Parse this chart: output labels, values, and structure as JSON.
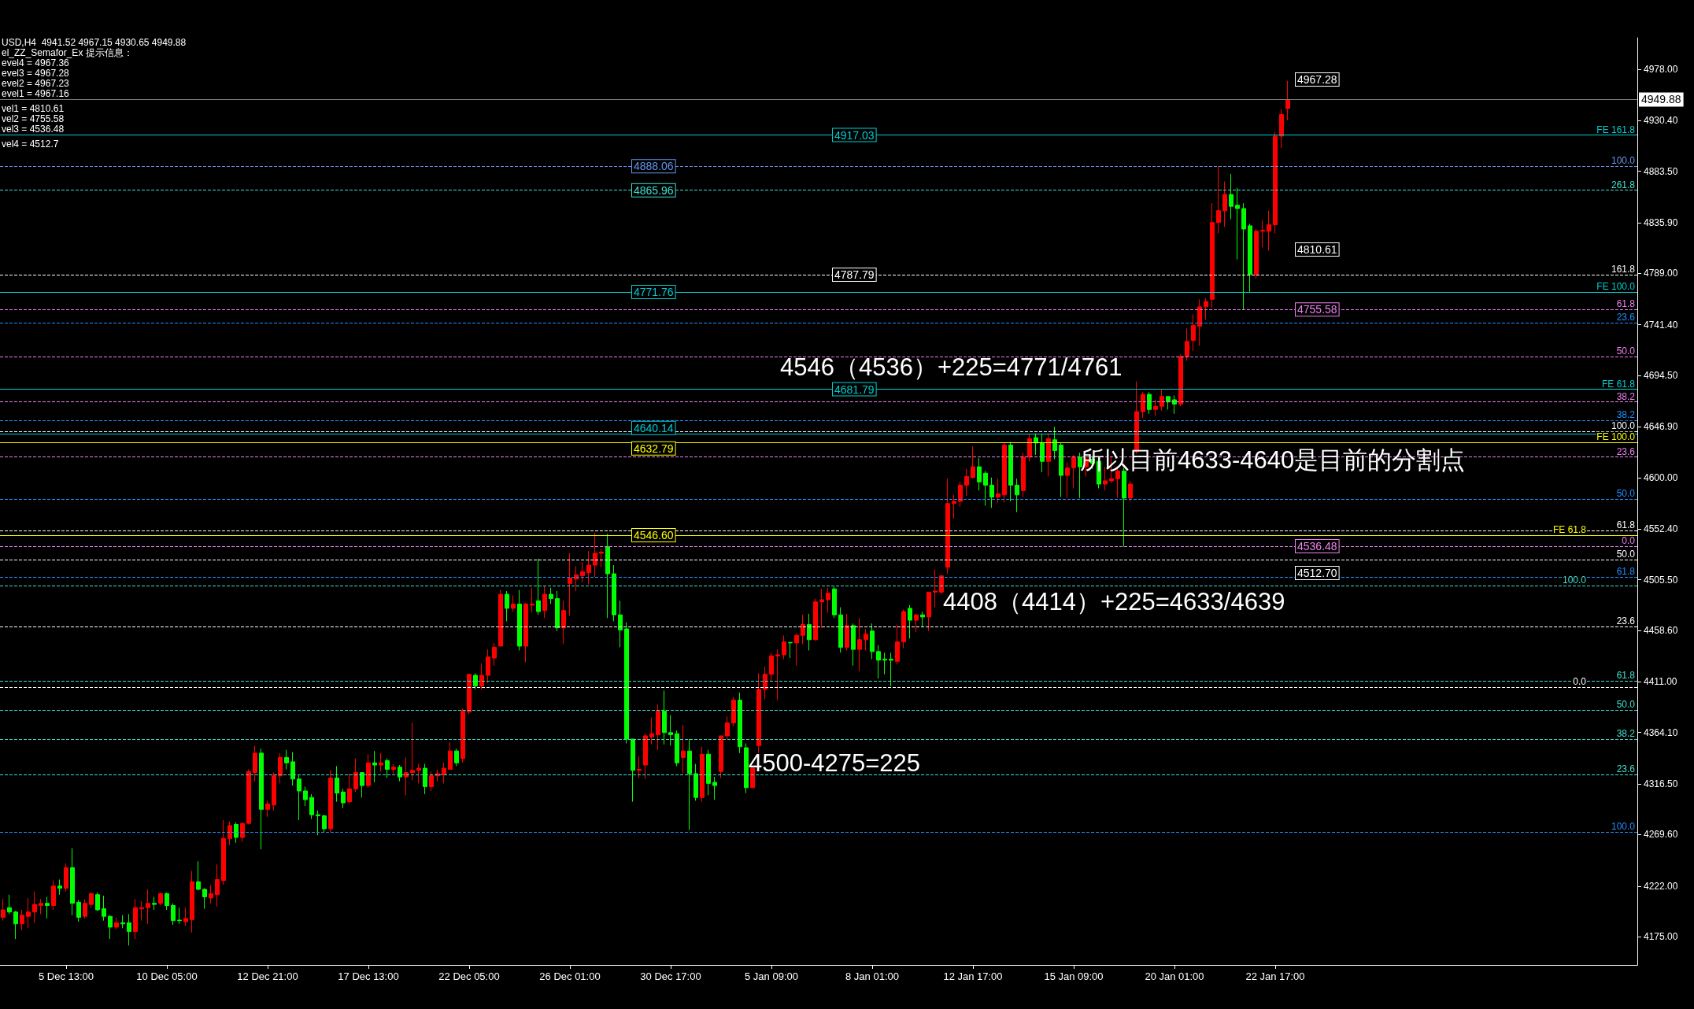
{
  "chart_data": {
    "type": "candlestick",
    "title": "USD,H4  4941.52 4967.15 4930.65 4949.88",
    "subtitle": "el_ZZ_Semafor_Ex 提示信息：",
    "categories": [
      null,
      null,
      null,
      null,
      null,
      null,
      null,
      null,
      null,
      null,
      "5 Dec 13:00",
      null,
      null,
      null,
      null,
      null,
      null,
      null,
      null,
      null,
      null,
      null,
      null,
      null,
      null,
      null,
      "10 Dec 05:00",
      null,
      null,
      null,
      null,
      null,
      null,
      null,
      null,
      null,
      null,
      null,
      null,
      null,
      null,
      null,
      "12 Dec 21:00",
      null,
      null,
      null,
      null,
      null,
      null,
      null,
      null,
      null,
      null,
      null,
      null,
      null,
      null,
      null,
      "17 Dec 13:00",
      null,
      null,
      null,
      null,
      null,
      null,
      null,
      null,
      null,
      null,
      null,
      null,
      null,
      null,
      null,
      "22 Dec 05:00",
      null,
      null,
      null,
      null,
      null,
      null,
      null,
      null,
      null,
      null,
      null,
      null,
      null,
      null,
      null,
      "26 Dec 01:00",
      null,
      null,
      null,
      null,
      null,
      null,
      null,
      null,
      null,
      null,
      null,
      null,
      null,
      null,
      null,
      "30 Dec 17:00",
      null,
      null,
      null,
      null,
      null,
      null,
      null,
      null,
      null,
      null,
      null,
      null,
      null,
      null,
      null,
      "5 Jan 09:00",
      null,
      null,
      null,
      null,
      null,
      null,
      null,
      null,
      null,
      null,
      null,
      null,
      null,
      null,
      null,
      "8 Jan 01:00",
      null,
      null,
      null,
      null,
      null,
      null,
      null,
      null,
      null,
      null,
      null,
      null,
      null,
      null,
      null,
      "12 Jan 17:00",
      null,
      null,
      null,
      null,
      null,
      null,
      null,
      null,
      null,
      null,
      null,
      null,
      null,
      null,
      null,
      "15 Jan 09:00",
      null,
      null,
      null,
      null,
      null,
      null,
      null,
      null,
      null,
      null,
      null,
      null,
      null,
      null,
      null,
      "20 Jan 01:00",
      null,
      null,
      null,
      null,
      null,
      null,
      null,
      null,
      null,
      null,
      null,
      null,
      null,
      null,
      null,
      "22 Jan 17:00",
      null,
      null,
      null,
      null,
      null,
      null,
      null,
      null,
      null,
      null,
      null,
      null,
      null,
      null,
      null,
      null,
      null,
      null,
      null,
      null,
      null,
      null,
      null,
      null,
      null,
      null,
      null,
      null,
      null,
      null,
      null,
      null,
      null,
      null,
      null,
      null,
      null,
      null,
      null,
      null,
      null,
      null,
      null,
      null,
      null,
      null,
      null,
      null,
      null,
      null,
      null,
      null,
      null,
      null,
      null,
      null,
      null
    ],
    "ohlc": [
      [
        4193,
        4210,
        4190,
        4200
      ],
      [
        4202,
        4214,
        4196,
        4198
      ],
      [
        4198,
        4199,
        4173,
        4187
      ],
      [
        4187,
        4200,
        4181,
        4195
      ],
      [
        4194,
        4211,
        4183,
        4198
      ],
      [
        4198,
        4217,
        4188,
        4205
      ],
      [
        4204,
        4210,
        4196,
        4206
      ],
      [
        4206,
        4212,
        4192,
        4204
      ],
      [
        4204,
        4227,
        4200,
        4222
      ],
      [
        4222,
        4228,
        4214,
        4220
      ],
      [
        4220,
        4243,
        4217,
        4239
      ],
      [
        4239,
        4257,
        4195,
        4206
      ],
      [
        4207,
        4209,
        4189,
        4193
      ],
      [
        4194,
        4210,
        4192,
        4206
      ],
      [
        4205,
        4216,
        4202,
        4215
      ],
      [
        4214,
        4216,
        4199,
        4200
      ],
      [
        4201,
        4213,
        4190,
        4194
      ],
      [
        4194,
        4195,
        4173,
        4184
      ],
      [
        4184,
        4193,
        4182,
        4188
      ],
      [
        4188,
        4195,
        4183,
        4187
      ],
      [
        4188,
        4196,
        4167,
        4180
      ],
      [
        4180,
        4210,
        4173,
        4202
      ],
      [
        4201,
        4208,
        4190,
        4202
      ],
      [
        4202,
        4219,
        4187,
        4206
      ],
      [
        4206,
        4212,
        4200,
        4205
      ],
      [
        4206,
        4216,
        4204,
        4215
      ],
      [
        4215,
        4216,
        4200,
        4204
      ],
      [
        4204,
        4206,
        4186,
        4190
      ],
      [
        4190.5,
        4202,
        4187,
        4190
      ],
      [
        4189,
        4202,
        4185,
        4192
      ],
      [
        4191,
        4236,
        4179,
        4226
      ],
      [
        4226,
        4245,
        4218,
        4219
      ],
      [
        4219,
        4220,
        4201,
        4212
      ],
      [
        4211,
        4223,
        4206,
        4215
      ],
      [
        4214,
        4242,
        4203,
        4228
      ],
      [
        4227,
        4283,
        4223,
        4266
      ],
      [
        4266,
        4282,
        4260,
        4278
      ],
      [
        4279,
        4281,
        4262,
        4267
      ],
      [
        4267,
        4281,
        4263,
        4280
      ],
      [
        4280,
        4330,
        4279,
        4328
      ],
      [
        4327,
        4352,
        4319,
        4345
      ],
      [
        4345,
        4349,
        4256,
        4293
      ],
      [
        4293,
        4301,
        4286,
        4298
      ],
      [
        4297,
        4327,
        4292,
        4324
      ],
      [
        4324,
        4345,
        4317,
        4341
      ],
      [
        4341,
        4348,
        4330,
        4336
      ],
      [
        4337,
        4346,
        4315,
        4321
      ],
      [
        4321,
        4325,
        4283,
        4310
      ],
      [
        4310,
        4314,
        4296,
        4302
      ],
      [
        4304,
        4307,
        4284,
        4288
      ],
      [
        4288,
        4292,
        4269,
        4287
      ],
      [
        4287,
        4288,
        4272,
        4275
      ],
      [
        4275,
        4329,
        4272,
        4322
      ],
      [
        4322,
        4333,
        4300,
        4308
      ],
      [
        4309,
        4312,
        4294,
        4299
      ],
      [
        4300,
        4326,
        4298,
        4312
      ],
      [
        4312,
        4340,
        4309,
        4327
      ],
      [
        4327,
        4327,
        4304,
        4315
      ],
      [
        4315,
        4344,
        4313,
        4336
      ],
      [
        4336,
        4347,
        4318,
        4334
      ],
      [
        4334,
        4345,
        4328,
        4336
      ],
      [
        4338,
        4340,
        4322,
        4330
      ],
      [
        4330,
        4335,
        4326,
        4332
      ],
      [
        4332,
        4334,
        4319,
        4323
      ],
      [
        4323,
        4341,
        4306,
        4327
      ],
      [
        4327,
        4373,
        4320,
        4329
      ],
      [
        4329,
        4335,
        4317,
        4331
      ],
      [
        4331,
        4335,
        4307,
        4314
      ],
      [
        4314,
        4328,
        4310,
        4324
      ],
      [
        4324,
        4330,
        4319,
        4326
      ],
      [
        4325,
        4336,
        4317,
        4331
      ],
      [
        4330,
        4355,
        4330,
        4347
      ],
      [
        4347,
        4349,
        4333,
        4336
      ],
      [
        4340,
        4386,
        4336,
        4384
      ],
      [
        4383,
        4418,
        4381,
        4418
      ],
      [
        4417,
        4419,
        4404,
        4407
      ],
      [
        4407,
        4428,
        4404,
        4417
      ],
      [
        4417,
        4441,
        4410,
        4434
      ],
      [
        4433,
        4447,
        4426,
        4443
      ],
      [
        4444,
        4496,
        4444,
        4492
      ],
      [
        4492,
        4495,
        4467,
        4479
      ],
      [
        4479,
        4491,
        4476,
        4483
      ],
      [
        4483,
        4496,
        4440,
        4444
      ],
      [
        4444,
        4484,
        4429,
        4483
      ],
      [
        4482,
        4498,
        4475,
        4483
      ],
      [
        4486,
        4525,
        4473,
        4476
      ],
      [
        4477,
        4500,
        4470,
        4492
      ],
      [
        4492,
        4498,
        4483,
        4488
      ],
      [
        4488,
        4495,
        4458,
        4461
      ],
      [
        4461,
        4486,
        4446,
        4477
      ],
      [
        4502,
        4530,
        4472,
        4507
      ],
      [
        4506,
        4518,
        4495,
        4510
      ],
      [
        4509,
        4522,
        4503,
        4513
      ],
      [
        4512,
        4532,
        4501,
        4519
      ],
      [
        4519,
        4549,
        4508,
        4530
      ],
      [
        4530,
        4534,
        4517,
        4531
      ],
      [
        4536,
        4548,
        4470,
        4511
      ],
      [
        4511,
        4519,
        4467,
        4473
      ],
      [
        4473,
        4486,
        4443,
        4459
      ],
      [
        4460,
        4466,
        4354,
        4358
      ],
      [
        4358,
        4358,
        4300,
        4329
      ],
      [
        4329,
        4342,
        4322,
        4330
      ],
      [
        4334,
        4363,
        4321,
        4361
      ],
      [
        4360,
        4378,
        4353,
        4363
      ],
      [
        4362,
        4390,
        4348,
        4384
      ],
      [
        4384,
        4403,
        4353,
        4364
      ],
      [
        4364,
        4380,
        4352,
        4362
      ],
      [
        4363,
        4366,
        4333,
        4336
      ],
      [
        4341,
        4371,
        4326,
        4347
      ],
      [
        4347,
        4358,
        4274,
        4326
      ],
      [
        4326,
        4335,
        4301,
        4304
      ],
      [
        4304,
        4351,
        4300,
        4344
      ],
      [
        4344,
        4348,
        4306,
        4317
      ],
      [
        4318,
        4323,
        4302,
        4315
      ],
      [
        4328,
        4361,
        4322,
        4361
      ],
      [
        4361,
        4379,
        4358,
        4373
      ],
      [
        4373,
        4397,
        4370,
        4394
      ],
      [
        4394,
        4401,
        4345,
        4351
      ],
      [
        4350,
        4354,
        4308,
        4313
      ],
      [
        4313,
        4333,
        4313,
        4331
      ],
      [
        4352,
        4419,
        4345,
        4404
      ],
      [
        4404,
        4425,
        4395,
        4418
      ],
      [
        4418,
        4438,
        4411,
        4435
      ],
      [
        4435,
        4441,
        4394,
        4436
      ],
      [
        4436,
        4454,
        4432,
        4448
      ],
      [
        4447.5,
        4447.5,
        4433,
        4447
      ],
      [
        4447,
        4456,
        4426,
        4454
      ],
      [
        4454,
        4473,
        4446,
        4464
      ],
      [
        4464,
        4474,
        4440,
        4450
      ],
      [
        4450,
        4488,
        4449,
        4485
      ],
      [
        4485,
        4497,
        4461,
        4487
      ],
      [
        4487,
        4498,
        4475,
        4493
      ],
      [
        4497,
        4499,
        4470,
        4473
      ],
      [
        4473,
        4480,
        4438,
        4443
      ],
      [
        4443,
        4474,
        4440,
        4463
      ],
      [
        4463,
        4465,
        4426,
        4441
      ],
      [
        4441,
        4470,
        4421,
        4450
      ],
      [
        4450,
        4460,
        4440,
        4455
      ],
      [
        4458,
        4465,
        4432,
        4439
      ],
      [
        4439,
        4445,
        4414,
        4431
      ],
      [
        4432,
        4438,
        4418,
        4431
      ],
      [
        4432,
        4438,
        4407,
        4431
      ],
      [
        4430,
        4464,
        4427,
        4448
      ],
      [
        4448,
        4478,
        4442,
        4476
      ],
      [
        4479,
        4482,
        4451,
        4468
      ],
      [
        4468,
        4474,
        4457,
        4473
      ],
      [
        4473,
        4476,
        4462,
        4471
      ],
      [
        4471,
        4494,
        4458,
        4494
      ],
      [
        4494,
        4515,
        4480,
        4495
      ],
      [
        4494,
        4510,
        4492,
        4509
      ],
      [
        4517,
        4599,
        4511,
        4576
      ],
      [
        4576,
        4584,
        4562,
        4578
      ],
      [
        4578,
        4596,
        4573,
        4593
      ],
      [
        4593,
        4608,
        4583,
        4601
      ],
      [
        4600,
        4629,
        4599,
        4610
      ],
      [
        4610,
        4618,
        4588,
        4596
      ],
      [
        4604,
        4606,
        4574,
        4593
      ],
      [
        4593,
        4600,
        4572,
        4582
      ],
      [
        4582,
        4599,
        4577,
        4585
      ],
      [
        4584,
        4632,
        4577,
        4630
      ],
      [
        4630,
        4633,
        4578,
        4593
      ],
      [
        4593,
        4599,
        4568,
        4584
      ],
      [
        4588,
        4623,
        4582,
        4619
      ],
      [
        4619,
        4640,
        4615,
        4636
      ],
      [
        4637,
        4641,
        4621,
        4632
      ],
      [
        4632,
        4640,
        4605,
        4615
      ],
      [
        4615,
        4641,
        4601,
        4636
      ],
      [
        4635,
        4647,
        4617,
        4625
      ],
      [
        4630,
        4632,
        4582,
        4602
      ],
      [
        4602,
        4614,
        4581,
        4609
      ],
      [
        4609,
        4621,
        4590,
        4619
      ],
      [
        4619,
        4623,
        4581,
        4610
      ],
      [
        4610,
        4620,
        4601,
        4617
      ],
      [
        4617,
        4620,
        4608,
        4613
      ],
      [
        4615,
        4618,
        4590,
        4594
      ],
      [
        4594,
        4610,
        4588,
        4597
      ],
      [
        4597,
        4620,
        4595,
        4599
      ],
      [
        4599,
        4610,
        4581,
        4606
      ],
      [
        4606,
        4609,
        4536,
        4581
      ],
      [
        4581,
        4597,
        4578,
        4594
      ],
      [
        4624,
        4689,
        4622,
        4661
      ],
      [
        4661,
        4679,
        4655,
        4677
      ],
      [
        4677,
        4679,
        4659,
        4663
      ],
      [
        4663,
        4672,
        4657,
        4666
      ],
      [
        4666,
        4682,
        4662,
        4675
      ],
      [
        4675,
        4675,
        4663,
        4670
      ],
      [
        4672,
        4676,
        4659,
        4668
      ],
      [
        4668,
        4714,
        4666,
        4712
      ],
      [
        4712,
        4738,
        4708,
        4726
      ],
      [
        4727,
        4751,
        4717,
        4741
      ],
      [
        4740,
        4765,
        4722,
        4758
      ],
      [
        4758,
        4766,
        4746,
        4763
      ],
      [
        4765,
        4854,
        4757,
        4836
      ],
      [
        4836,
        4888,
        4826,
        4847
      ],
      [
        4847,
        4874,
        4832,
        4862
      ],
      [
        4862,
        4881,
        4839,
        4851
      ],
      [
        4852,
        4868,
        4802,
        4849
      ],
      [
        4849,
        4854,
        4755,
        4830
      ],
      [
        4833,
        4835,
        4772,
        4788
      ],
      [
        4788,
        4830,
        4784,
        4828
      ],
      [
        4828,
        4838,
        4813,
        4829
      ],
      [
        4828,
        4847,
        4810,
        4834
      ],
      [
        4834,
        4920,
        4826,
        4916
      ],
      [
        4916,
        4941,
        4905,
        4936
      ],
      [
        4941.52,
        4967.15,
        4930.65,
        4949.88
      ],
      null,
      null,
      null,
      null,
      null,
      null,
      null,
      null,
      null,
      null,
      null,
      null,
      null,
      null,
      null,
      null,
      null,
      null,
      null,
      null,
      null,
      null,
      null,
      null,
      null,
      null,
      null,
      null,
      null,
      null,
      null,
      null,
      null,
      null,
      null,
      null,
      null,
      null,
      null,
      null,
      null,
      null,
      null,
      null,
      null,
      null,
      null,
      null,
      null,
      null,
      null,
      null,
      null,
      null,
      null
    ],
    "colors": [
      "#ff0000",
      "#00ff00",
      "#00ff00",
      "#ff0000",
      "#ff0000",
      "#ff0000",
      "#ff0000",
      "#00ff00",
      "#ff0000",
      "#00ff00",
      "#ff0000",
      "#00ff00",
      "#00ff00",
      "#ff0000",
      "#ff0000",
      "#00ff00",
      "#00ff00",
      "#00ff00",
      "#ff0000",
      "#00ff00",
      "#00ff00",
      "#ff0000",
      "#ff0000",
      "#ff0000",
      "#00ff00",
      "#ff0000",
      "#00ff00",
      "#00ff00",
      "#00ff00",
      "#ff0000",
      "#ff0000",
      "#00ff00",
      "#00ff00",
      "#ff0000",
      "#ff0000",
      "#ff0000",
      "#ff0000",
      "#00ff00",
      "#ff0000",
      "#ff0000",
      "#ff0000",
      "#00ff00",
      "#ff0000",
      "#ff0000",
      "#ff0000",
      "#00ff00",
      "#00ff00",
      "#00ff00",
      "#00ff00",
      "#00ff00",
      "#00ff00",
      "#00ff00",
      "#ff0000",
      "#00ff00",
      "#00ff00",
      "#ff0000",
      "#ff0000",
      "#00ff00",
      "#ff0000",
      "#00ff00",
      "#ff0000",
      "#00ff00",
      "#ff0000",
      "#00ff00",
      "#ff0000",
      "#ff0000",
      "#ff0000",
      "#00ff00",
      "#ff0000",
      "#ff0000",
      "#ff0000",
      "#ff0000",
      "#00ff00",
      "#ff0000",
      "#ff0000",
      "#00ff00",
      "#ff0000",
      "#ff0000",
      "#ff0000",
      "#ff0000",
      "#00ff00",
      "#ff0000",
      "#00ff00",
      "#ff0000",
      "#ff0000",
      "#00ff00",
      "#ff0000",
      "#00ff00",
      "#00ff00",
      "#ff0000",
      "#ff0000",
      "#ff0000",
      "#ff0000",
      "#ff0000",
      "#ff0000",
      "#ff0000",
      "#00ff00",
      "#00ff00",
      "#00ff00",
      "#00ff00",
      "#00ff00",
      "#ff0000",
      "#ff0000",
      "#ff0000",
      "#ff0000",
      "#00ff00",
      "#00ff00",
      "#00ff00",
      "#ff0000",
      "#00ff00",
      "#00ff00",
      "#ff0000",
      "#00ff00",
      "#00ff00",
      "#ff0000",
      "#ff0000",
      "#ff0000",
      "#00ff00",
      "#00ff00",
      "#ff0000",
      "#ff0000",
      "#ff0000",
      "#ff0000",
      "#ff0000",
      "#ff0000",
      "#00ff00",
      "#ff0000",
      "#ff0000",
      "#00ff00",
      "#ff0000",
      "#ff0000",
      "#ff0000",
      "#00ff00",
      "#00ff00",
      "#ff0000",
      "#00ff00",
      "#ff0000",
      "#ff0000",
      "#00ff00",
      "#00ff00",
      "#00ff00",
      "#00ff00",
      "#ff0000",
      "#ff0000",
      "#00ff00",
      "#ff0000",
      "#00ff00",
      "#ff0000",
      "#ff0000",
      "#ff0000",
      "#ff0000",
      "#ff0000",
      "#ff0000",
      "#ff0000",
      "#ff0000",
      "#00ff00",
      "#00ff00",
      "#00ff00",
      "#ff0000",
      "#ff0000",
      "#00ff00",
      "#00ff00",
      "#ff0000",
      "#ff0000",
      "#00ff00",
      "#00ff00",
      "#ff0000",
      "#00ff00",
      "#00ff00",
      "#ff0000",
      "#ff0000",
      "#00ff00",
      "#ff0000",
      "#00ff00",
      "#00ff00",
      "#ff0000",
      "#ff0000",
      "#ff0000",
      "#00ff00",
      "#ff0000",
      "#ff0000",
      "#ff0000",
      "#00ff00",
      "#ff0000",
      "#ff0000",
      "#00ff00",
      "#00ff00",
      "#ff0000",
      "#ff0000",
      "#ff0000",
      "#ff0000",
      "#ff0000",
      "#ff0000",
      "#ff0000",
      "#ff0000",
      "#00ff00",
      "#00ff00",
      "#00ff00",
      "#00ff00",
      "#ff0000",
      "#ff0000",
      "#ff0000",
      "#ff0000",
      "#ff0000",
      "#ff0000",
      null,
      null,
      null,
      null,
      null,
      null,
      null,
      null,
      null,
      null,
      null,
      null,
      null,
      null,
      null,
      null,
      null,
      null,
      null,
      null,
      null,
      null,
      null,
      null,
      null,
      null,
      null,
      null,
      null,
      null,
      null,
      null,
      null,
      null,
      null,
      null,
      null,
      null,
      null,
      null,
      null,
      null,
      null,
      null,
      null,
      null,
      null,
      null,
      null,
      null,
      null,
      null,
      null,
      null,
      null
    ],
    "ylim": [
      4149,
      5007
    ],
    "yticks": [
      {
        "value": 4175,
        "label": "4175.00"
      },
      {
        "value": 4222,
        "label": "4222.00"
      },
      {
        "value": 4269.6,
        "label": "4269.60"
      },
      {
        "value": 4316.5,
        "label": "4316.50"
      },
      {
        "value": 4364.1,
        "label": "4364.10"
      },
      {
        "value": 4411,
        "label": "4411.00"
      },
      {
        "value": 4458.6,
        "label": "4458.60"
      },
      {
        "value": 4505.5,
        "label": "4505.50"
      },
      {
        "value": 4552.4,
        "label": "4552.40"
      },
      {
        "value": 4600,
        "label": "4600.00"
      },
      {
        "value": 4646.9,
        "label": "4646.90"
      },
      {
        "value": 4694.5,
        "label": "4694.50"
      },
      {
        "value": 4741.4,
        "label": "4741.40"
      },
      {
        "value": 4789,
        "label": "4789.00"
      },
      {
        "value": 4835.9,
        "label": "4835.90"
      },
      {
        "value": 4883.5,
        "label": "4883.50"
      },
      {
        "value": 4930.4,
        "label": "4930.40"
      },
      {
        "value": 4978,
        "label": "4978.00"
      }
    ],
    "ref_lines": [
      {
        "axis": "y",
        "value": 4949.88,
        "label": "4949.88",
        "color": "#808080",
        "line_style": "solid"
      },
      {
        "axis": "y",
        "value": 4917.03,
        "label": "4917.03",
        "color": "#00ced1",
        "line_style": "solid"
      },
      {
        "axis": "y",
        "value": 4888.06,
        "label": "4888.06",
        "color": "#6495ed",
        "line_style": "dashed"
      },
      {
        "axis": "y",
        "value": 4865.96,
        "label": "4865.96",
        "color": "#40e0d0",
        "line_style": "dashed"
      },
      {
        "axis": "y",
        "value": 4787.79,
        "label": "4787.79",
        "color": "#ffffff",
        "line_style": "dashed"
      },
      {
        "axis": "y",
        "value": 4771.76,
        "label": "4771.76",
        "color": "#00ced1",
        "line_style": "solid"
      },
      {
        "axis": "y",
        "value": 4755.58,
        "label": "4755.58",
        "color": "#ee82ee",
        "line_style": "dashed"
      },
      {
        "axis": "y",
        "value": 4743,
        "color": "#1e90ff",
        "line_style": "dashed"
      },
      {
        "axis": "y",
        "value": 4712,
        "color": "#ee82ee",
        "line_style": "dashed"
      },
      {
        "axis": "y",
        "value": 4681.79,
        "label": "4681.79",
        "color": "#00ced1",
        "line_style": "solid"
      },
      {
        "axis": "y",
        "value": 4670,
        "color": "#ee82ee",
        "line_style": "dashed"
      },
      {
        "axis": "y",
        "value": 4653,
        "color": "#1e90ff",
        "line_style": "dashed"
      },
      {
        "axis": "y",
        "value": 4643,
        "color": "#ffffff",
        "line_style": "dashed"
      },
      {
        "axis": "y",
        "value": 4640.14,
        "label": "4640.14",
        "color": "#00ced1",
        "line_style": "solid"
      },
      {
        "axis": "y",
        "value": 4632.79,
        "label": "4632.79",
        "color": "#ffff00",
        "line_style": "solid"
      },
      {
        "axis": "y",
        "value": 4619,
        "color": "#ee82ee",
        "line_style": "dashed"
      },
      {
        "axis": "y",
        "value": 4580,
        "color": "#1e90ff",
        "line_style": "dashed"
      },
      {
        "axis": "y",
        "value": 4551,
        "color": "#ffffff",
        "line_style": "dashed"
      },
      {
        "axis": "y",
        "value": 4546.6,
        "label": "4546.60",
        "color": "#ffff00",
        "line_style": "solid"
      },
      {
        "axis": "y",
        "value": 4536.48,
        "label": "4536.48",
        "color": "#ee82ee",
        "line_style": "dashed"
      },
      {
        "axis": "y",
        "value": 4524,
        "color": "#ffffff",
        "line_style": "dashed"
      },
      {
        "axis": "y",
        "value": 4508,
        "color": "#1e90ff",
        "line_style": "dashed"
      },
      {
        "axis": "y",
        "value": 4500,
        "color": "#40e0d0",
        "line_style": "dashed"
      },
      {
        "axis": "y",
        "value": 4462,
        "color": "#ffffff",
        "line_style": "dashed"
      },
      {
        "axis": "y",
        "value": 4412,
        "color": "#40e0d0",
        "line_style": "dashed"
      },
      {
        "axis": "y",
        "value": 4406,
        "color": "#ffffff",
        "line_style": "dashed"
      },
      {
        "axis": "y",
        "value": 4385,
        "color": "#40e0d0",
        "line_style": "dashed"
      },
      {
        "axis": "y",
        "value": 4358,
        "color": "#40e0d0",
        "line_style": "dashed"
      },
      {
        "axis": "y",
        "value": 4325,
        "color": "#40e0d0",
        "line_style": "dashed"
      },
      {
        "axis": "y",
        "value": 4272,
        "color": "#1e90ff",
        "line_style": "dashed"
      }
    ],
    "annotations": [
      "evel4 = 4967.36",
      "evel3 = 4967.28",
      "evel2 = 4967.23",
      "evel1 = 4967.16",
      "vel1 = 4810.61",
      "vel2 = 4755.58",
      "vel3 = 4536.48",
      "vel4 = 4512.7",
      "4546（4536）+225=4771/4761",
      "所以目前4633-4640是目前的分割点",
      "4408（4414）+225=4633/4639",
      "4500-4275=225",
      "4967.28",
      "4810.61",
      "4512.70",
      {
        "text": "FE 161.8",
        "y": 4917.03
      },
      {
        "text": "100.0",
        "y": 4888.06
      },
      {
        "text": "261.8",
        "y": 4865.96
      },
      {
        "text": "161.8",
        "y": 4787.79
      },
      {
        "text": "FE 100.0",
        "y": 4771.76
      },
      {
        "text": "61.8",
        "y": 4755.58
      },
      {
        "text": "23.6",
        "y": 4743
      },
      {
        "text": "50.0",
        "y": 4712
      },
      {
        "text": "FE 61.8",
        "y": 4681.79
      },
      {
        "text": "38.2",
        "y": 4670
      },
      {
        "text": "38.2",
        "y": 4653
      },
      {
        "text": "100.0",
        "y": 4643
      },
      {
        "text": "FE 100.0",
        "y": 4632.79
      },
      {
        "text": "23.6",
        "y": 4619
      },
      {
        "text": "50.0",
        "y": 4580
      },
      {
        "text": "61.8",
        "y": 4551
      },
      {
        "text": "FE 61.8",
        "y": 4546.6
      },
      {
        "text": "0.0",
        "y": 4536.48
      },
      {
        "text": "50.0",
        "y": 4524
      },
      {
        "text": "61.8",
        "y": 4508
      },
      {
        "text": "100.0",
        "y": 4500
      },
      {
        "text": "23.6",
        "y": 4462
      },
      {
        "text": "61.8",
        "y": 4412
      },
      {
        "text": "0.0",
        "y": 4406
      },
      {
        "text": "50.0",
        "y": 4385
      },
      {
        "text": "38.2",
        "y": 4358
      },
      {
        "text": "23.6",
        "y": 4325
      },
      {
        "text": "100.0",
        "y": 4272
      }
    ]
  }
}
